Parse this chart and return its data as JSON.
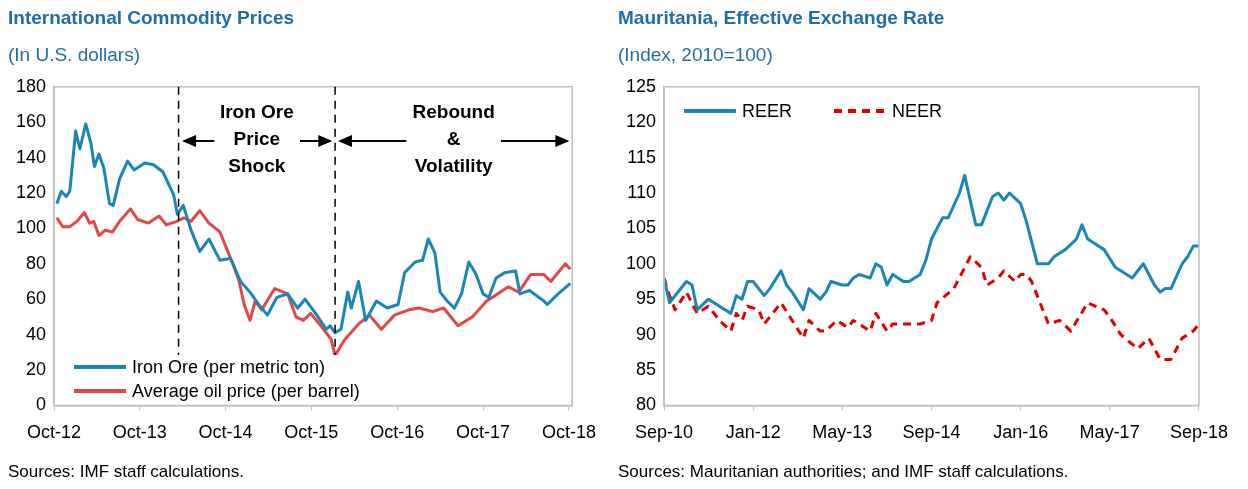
{
  "chart_data": [
    {
      "type": "line",
      "title": "International Commodity Prices",
      "subtitle": "(In U.S. dollars)",
      "legend": "bottom left",
      "ylim": [
        0,
        180
      ],
      "yticks": [
        0,
        20,
        40,
        60,
        80,
        100,
        120,
        140,
        160,
        180
      ],
      "xlim": [
        "2012-10-01",
        "2018-10-15"
      ],
      "xticks": [
        {
          "value": "2012-10-01",
          "label": "Oct-12"
        },
        {
          "value": "2013-10-01",
          "label": "Oct-13"
        },
        {
          "value": "2014-10-01",
          "label": "Oct-14"
        },
        {
          "value": "2015-10-01",
          "label": "Oct-15"
        },
        {
          "value": "2016-10-01",
          "label": "Oct-16"
        },
        {
          "value": "2017-10-01",
          "label": "Oct-17"
        },
        {
          "value": "2018-10-01",
          "label": "Oct-18"
        }
      ],
      "ref_lines": [
        {
          "axis": "x",
          "value": "2014-03-15",
          "color": "#000000",
          "line_style": "dashed"
        },
        {
          "axis": "x",
          "value": "2016-01-10",
          "color": "#000000",
          "line_style": "dashed"
        }
      ],
      "annotations": [
        "Iron Ore Price Shock",
        "Rebound & Volatility",
        "Sources: IMF staff calculations."
      ],
      "series": [
        {
          "name": "Iron Ore (per metric ton)",
          "color": "#1a86b3",
          "x": [
            "2012-10-13",
            "2012-11-01",
            "2012-11-22",
            "2012-12-07",
            "2013-01-01",
            "2013-01-19",
            "2013-02-13",
            "2013-03-07",
            "2013-03-22",
            "2013-04-10",
            "2013-05-01",
            "2013-05-25",
            "2013-06-10",
            "2013-07-07",
            "2013-08-10",
            "2013-09-07",
            "2013-10-22",
            "2013-11-28",
            "2014-01-07",
            "2014-02-22",
            "2014-03-10",
            "2014-04-04",
            "2014-05-07",
            "2014-06-13",
            "2014-07-22",
            "2014-09-07",
            "2014-10-22",
            "2014-12-04",
            "2015-01-13",
            "2015-02-19",
            "2015-03-28",
            "2015-05-07",
            "2015-06-22",
            "2015-08-04",
            "2015-09-04",
            "2015-10-19",
            "2015-12-04",
            "2015-12-19",
            "2016-01-10",
            "2016-02-04",
            "2016-03-04",
            "2016-03-19",
            "2016-04-19",
            "2016-05-19",
            "2016-07-04",
            "2016-08-19",
            "2016-10-04",
            "2016-11-01",
            "2016-12-16",
            "2017-01-16",
            "2017-02-10",
            "2017-03-10",
            "2017-04-01",
            "2017-05-01",
            "2017-06-01",
            "2017-07-01",
            "2017-08-01",
            "2017-09-01",
            "2017-10-01",
            "2017-10-25",
            "2017-11-25",
            "2018-01-01",
            "2018-02-16",
            "2018-03-07",
            "2018-04-16",
            "2018-06-16",
            "2018-07-01",
            "2018-08-16",
            "2018-10-07"
          ],
          "values": [
            114,
            121,
            118,
            121,
            155,
            145,
            159,
            148,
            135,
            142,
            134,
            114,
            113,
            128,
            138,
            133,
            137,
            136,
            132,
            119,
            108,
            113,
            99,
            87,
            94,
            82,
            83,
            70,
            64,
            57,
            51,
            61,
            63,
            55,
            60,
            52,
            43,
            45,
            41,
            43,
            64,
            55,
            70,
            48,
            59,
            55,
            57,
            75,
            81,
            82,
            94,
            86,
            64,
            59,
            55,
            63,
            81,
            74,
            63,
            61,
            72,
            75,
            76,
            63,
            65,
            59,
            57,
            63,
            69
          ]
        },
        {
          "name": "Average oil price (per barrel)",
          "color": "#e0484a",
          "x": [
            "2012-10-13",
            "2012-11-07",
            "2012-12-07",
            "2013-01-07",
            "2013-02-07",
            "2013-03-01",
            "2013-03-19",
            "2013-04-10",
            "2013-05-07",
            "2013-06-07",
            "2013-07-07",
            "2013-08-22",
            "2013-09-22",
            "2013-11-07",
            "2013-12-22",
            "2014-01-22",
            "2014-03-07",
            "2014-04-07",
            "2014-05-07",
            "2014-06-13",
            "2014-07-22",
            "2014-09-07",
            "2014-10-07",
            "2014-11-04",
            "2014-11-28",
            "2014-12-19",
            "2015-01-13",
            "2015-02-04",
            "2015-03-04",
            "2015-04-28",
            "2015-06-22",
            "2015-07-28",
            "2015-08-28",
            "2015-09-28",
            "2015-11-04",
            "2015-12-04",
            "2015-12-25",
            "2016-01-10",
            "2016-02-19",
            "2016-04-19",
            "2016-06-04",
            "2016-07-25",
            "2016-09-19",
            "2016-11-19",
            "2017-01-01",
            "2017-03-01",
            "2017-04-16",
            "2017-06-16",
            "2017-08-16",
            "2017-10-16",
            "2017-12-01",
            "2018-01-16",
            "2018-03-01",
            "2018-04-22",
            "2018-06-16",
            "2018-07-16",
            "2018-09-16",
            "2018-10-07"
          ],
          "values": [
            106,
            101,
            101,
            104,
            109,
            103,
            104,
            96,
            99,
            98,
            104,
            111,
            105,
            103,
            107,
            102,
            104,
            106,
            104,
            110,
            103,
            98,
            88,
            79,
            70,
            57,
            48,
            59,
            54,
            66,
            63,
            50,
            48,
            52,
            46,
            41,
            37,
            28,
            37,
            46,
            51,
            43,
            51,
            54,
            55,
            53,
            55,
            45,
            50,
            59,
            63,
            67,
            64,
            74,
            74,
            70,
            80,
            77
          ]
        }
      ]
    },
    {
      "type": "line",
      "title": "Mauritania, Effective Exchange Rate",
      "subtitle": "(Index, 2010=100)",
      "legend": "top left",
      "ylim": [
        80,
        125
      ],
      "yticks": [
        80,
        85,
        90,
        95,
        100,
        105,
        110,
        115,
        120,
        125
      ],
      "xlim": [
        "2010-09",
        "2018-09"
      ],
      "xticks": [
        {
          "value": "2010-09",
          "label": "Sep-10"
        },
        {
          "value": "2012-01",
          "label": "Jan-12"
        },
        {
          "value": "2013-05",
          "label": "May-13"
        },
        {
          "value": "2014-09",
          "label": "Sep-14"
        },
        {
          "value": "2016-01",
          "label": "Jan-16"
        },
        {
          "value": "2017-05",
          "label": "May-17"
        },
        {
          "value": "2018-09",
          "label": "Sep-18"
        }
      ],
      "annotations": [
        "Sources: Mauritanian authorities; and IMF staff calculations."
      ],
      "series": [
        {
          "name": "REER",
          "color": "#1a86b3",
          "line_style": "solid",
          "x": [
            "2010-09",
            "2010-10",
            "2011-01",
            "2011-02",
            "2011-03",
            "2011-05",
            "2011-06",
            "2011-07",
            "2011-09",
            "2011-10",
            "2011-11",
            "2011-12",
            "2012-01",
            "2012-03",
            "2012-04",
            "2012-06",
            "2012-07",
            "2012-08",
            "2012-10",
            "2012-11",
            "2013-01",
            "2013-02",
            "2013-03",
            "2013-05",
            "2013-06",
            "2013-07",
            "2013-08",
            "2013-10",
            "2013-11",
            "2013-12",
            "2014-01",
            "2014-02",
            "2014-04",
            "2014-05",
            "2014-07",
            "2014-08",
            "2014-09",
            "2014-11",
            "2014-12",
            "2015-02",
            "2015-03",
            "2015-05",
            "2015-06",
            "2015-07",
            "2015-08",
            "2015-09",
            "2015-10",
            "2015-11",
            "2016-01",
            "2016-02",
            "2016-04",
            "2016-06",
            "2016-07",
            "2016-09",
            "2016-11",
            "2016-12",
            "2017-01",
            "2017-03",
            "2017-04",
            "2017-06",
            "2017-09",
            "2017-11",
            "2018-01",
            "2018-02",
            "2018-03",
            "2018-04",
            "2018-06",
            "2018-07",
            "2018-08",
            "2018-09"
          ],
          "values": [
            98,
            94.5,
            97.5,
            97,
            93.5,
            95,
            94.5,
            94,
            93,
            95.5,
            95,
            97.5,
            97.5,
            95.5,
            96.5,
            99,
            97,
            96,
            93.5,
            96.5,
            95,
            96,
            97.5,
            97,
            97,
            98,
            98.5,
            98,
            100,
            99.5,
            97,
            98.5,
            97.5,
            97.5,
            98.5,
            100.5,
            103.5,
            106.5,
            106.5,
            110,
            112.5,
            105.5,
            105.5,
            107.5,
            109.5,
            110,
            109,
            110,
            108.5,
            106,
            100,
            100,
            101,
            102,
            103.5,
            105.5,
            103.5,
            102.5,
            102,
            99.5,
            98,
            100,
            97,
            96,
            96.5,
            96.5,
            100,
            101,
            102.5,
            102.5
          ]
        },
        {
          "name": "NEER",
          "color": "#e00000",
          "line_style": "dashed",
          "x": [
            "2010-09",
            "2010-10",
            "2010-11",
            "2011-01",
            "2011-03",
            "2011-05",
            "2011-07",
            "2011-09",
            "2011-10",
            "2011-11",
            "2011-12",
            "2012-02",
            "2012-03",
            "2012-04",
            "2012-06",
            "2012-08",
            "2012-10",
            "2012-11",
            "2013-01",
            "2013-02",
            "2013-04",
            "2013-06",
            "2013-07",
            "2013-10",
            "2013-11",
            "2014-01",
            "2014-02",
            "2014-05",
            "2014-07",
            "2014-09",
            "2014-10",
            "2015-01",
            "2015-04",
            "2015-06",
            "2015-07",
            "2015-09",
            "2015-10",
            "2015-12",
            "2016-01",
            "2016-02",
            "2016-03",
            "2016-06",
            "2016-08",
            "2016-10",
            "2017-01",
            "2017-04",
            "2017-05",
            "2017-07",
            "2017-10",
            "2017-12",
            "2018-02",
            "2018-04",
            "2018-06",
            "2018-08",
            "2018-09"
          ],
          "values": [
            98,
            95.5,
            93.5,
            96,
            93,
            94,
            92,
            90.5,
            93,
            92,
            94,
            93.5,
            91.5,
            92.5,
            94.5,
            92,
            89.5,
            92,
            90.5,
            90.5,
            92,
            91,
            92,
            90.5,
            93,
            90.5,
            91.5,
            91.5,
            91.5,
            92,
            94.5,
            96.5,
            101,
            99.5,
            97,
            98,
            99,
            97.5,
            98.5,
            98.5,
            97.5,
            91.5,
            92,
            90.5,
            94.5,
            93.5,
            92.5,
            90,
            88,
            89.5,
            86.5,
            86.5,
            89.5,
            90.5,
            91.5
          ]
        }
      ]
    }
  ]
}
